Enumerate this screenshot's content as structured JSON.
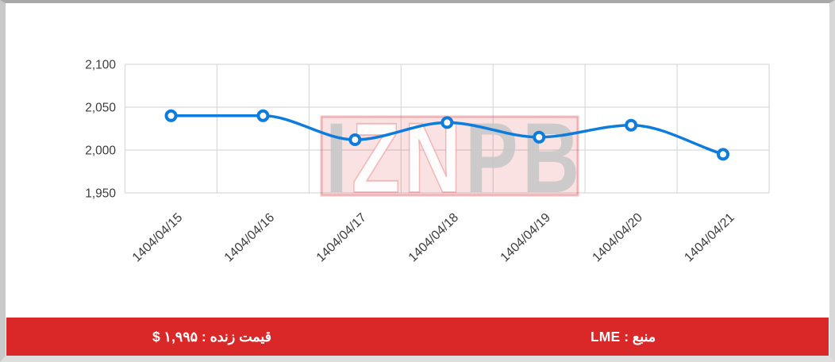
{
  "chart_data": {
    "type": "line",
    "categories": [
      "1404/04/15",
      "1404/04/16",
      "1404/04/17",
      "1404/04/18",
      "1404/04/19",
      "1404/04/20",
      "1404/04/21"
    ],
    "values": [
      2040,
      2040,
      2012,
      2032,
      2015,
      2029,
      1995
    ],
    "title": "",
    "xlabel": "",
    "ylabel": "",
    "ylim": [
      1950,
      2100
    ],
    "yticks": [
      2100,
      2050,
      2000,
      1950
    ],
    "ytick_labels": [
      "2,100",
      "2,050",
      "2,000",
      "1,950"
    ],
    "grid": true,
    "legend": false,
    "x_label_rotation_deg": -44,
    "line_color": "#0e7cdd",
    "marker_fill": "#ffffff",
    "grid_color": "#d9d9d9",
    "axis_text_color": "#3c3c3c"
  },
  "watermark": {
    "text": "IZNPB",
    "letters": [
      {
        "ch": "I",
        "color": "#c8c8c8"
      },
      {
        "ch": "Z",
        "color": "#ffffff"
      },
      {
        "ch": "N",
        "color": "#ffffff"
      },
      {
        "ch": "P",
        "color": "#c8c8c8"
      },
      {
        "ch": "B",
        "color": "#c8c8c8"
      }
    ],
    "box_fill": "rgba(221,55,60,0.15)",
    "box_stroke": "rgba(221,55,60,0.32)"
  },
  "footer": {
    "bar_color": "#da2727",
    "live_price": "قیمت زنده : ۱,۹۹۵ $",
    "source": "منبع : LME"
  }
}
